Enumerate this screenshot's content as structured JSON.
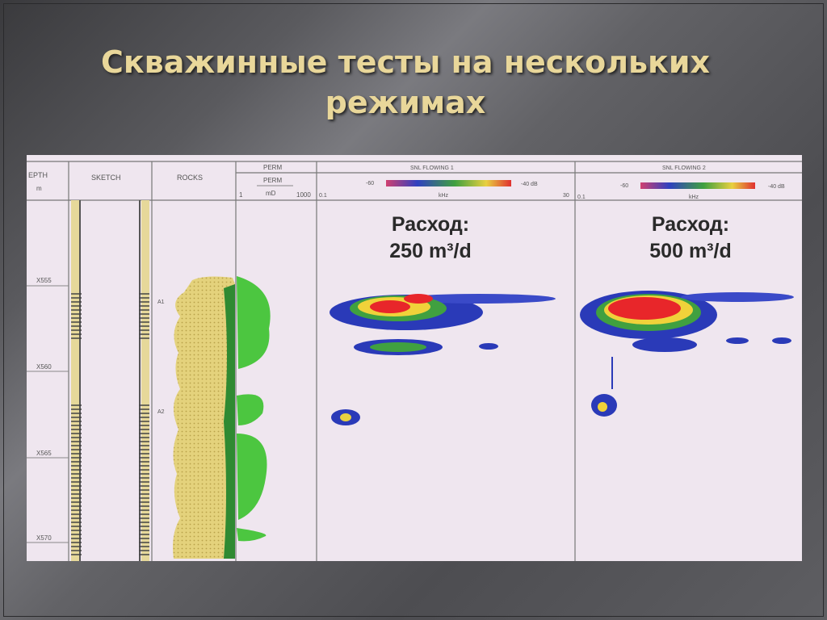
{
  "slide": {
    "title_line1": "Скважинные тесты на нескольких",
    "title_line2": "режимах"
  },
  "log": {
    "headers": {
      "depth": "EPTH",
      "depth_unit": "m",
      "sketch": "SKETCH",
      "rocks": "ROCKS",
      "perm_top": "PERM",
      "perm": "PERM",
      "perm_unit": "mD",
      "perm_min": "1",
      "perm_max": "1000",
      "snl1": "SNL FLOWING 1",
      "snl2": "SNL FLOWING 2",
      "scale_min": "-60",
      "scale_max": "-40 dB",
      "freq_unit": "kHz",
      "freq_min": "0.1",
      "freq_max": "30"
    },
    "depths": [
      "X555",
      "X560",
      "X565",
      "X570"
    ],
    "zone_markers": [
      "A1",
      "A2"
    ],
    "flow1": {
      "label": "Расход:",
      "value": "250 m³/d"
    },
    "flow2": {
      "label": "Расход:",
      "value": "500 m³/d"
    },
    "colors": {
      "background": "#efe6ef",
      "sand": "#e2cf7a",
      "perm": "#4cc640",
      "high": "#e8262a",
      "mid": "#f0d23a",
      "low": "#2a3ab8"
    }
  }
}
